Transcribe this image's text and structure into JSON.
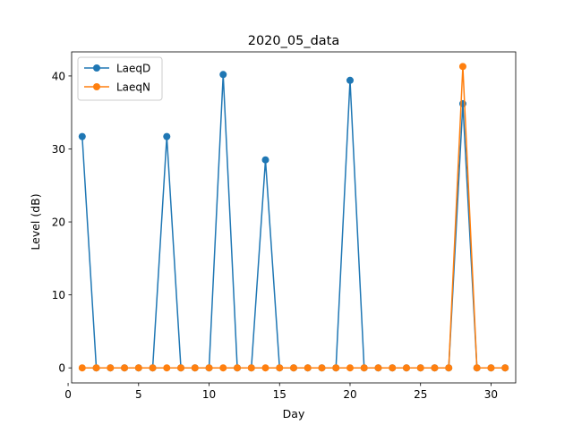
{
  "chart_data": {
    "type": "line",
    "title": "2020_05_data",
    "xlabel": "Day",
    "ylabel": "Level (dB)",
    "xlim": [
      0.25,
      31.75
    ],
    "ylim": [
      -2.06,
      43.3
    ],
    "xticks": [
      0,
      5,
      10,
      15,
      20,
      25,
      30
    ],
    "yticks": [
      0,
      10,
      20,
      30,
      40
    ],
    "legend_position": "top-left",
    "x": [
      1,
      2,
      3,
      4,
      5,
      6,
      7,
      8,
      9,
      10,
      11,
      12,
      13,
      14,
      15,
      16,
      17,
      18,
      19,
      20,
      21,
      22,
      23,
      24,
      25,
      26,
      27,
      28,
      29,
      30,
      31
    ],
    "series": [
      {
        "name": "LaeqD",
        "color": "#1f77b4",
        "values": [
          31.7,
          0,
          0,
          0,
          0,
          0,
          31.7,
          0,
          0,
          0,
          40.2,
          0,
          0,
          28.5,
          0,
          0,
          0,
          0,
          0,
          39.4,
          0,
          0,
          0,
          0,
          0,
          0,
          0,
          36.2,
          0,
          0,
          0
        ]
      },
      {
        "name": "LaeqN",
        "color": "#ff7f0e",
        "values": [
          0,
          0,
          0,
          0,
          0,
          0,
          0,
          0,
          0,
          0,
          0,
          0,
          0,
          0,
          0,
          0,
          0,
          0,
          0,
          0,
          0,
          0,
          0,
          0,
          0,
          0,
          0,
          41.3,
          0,
          0,
          0
        ]
      }
    ]
  }
}
